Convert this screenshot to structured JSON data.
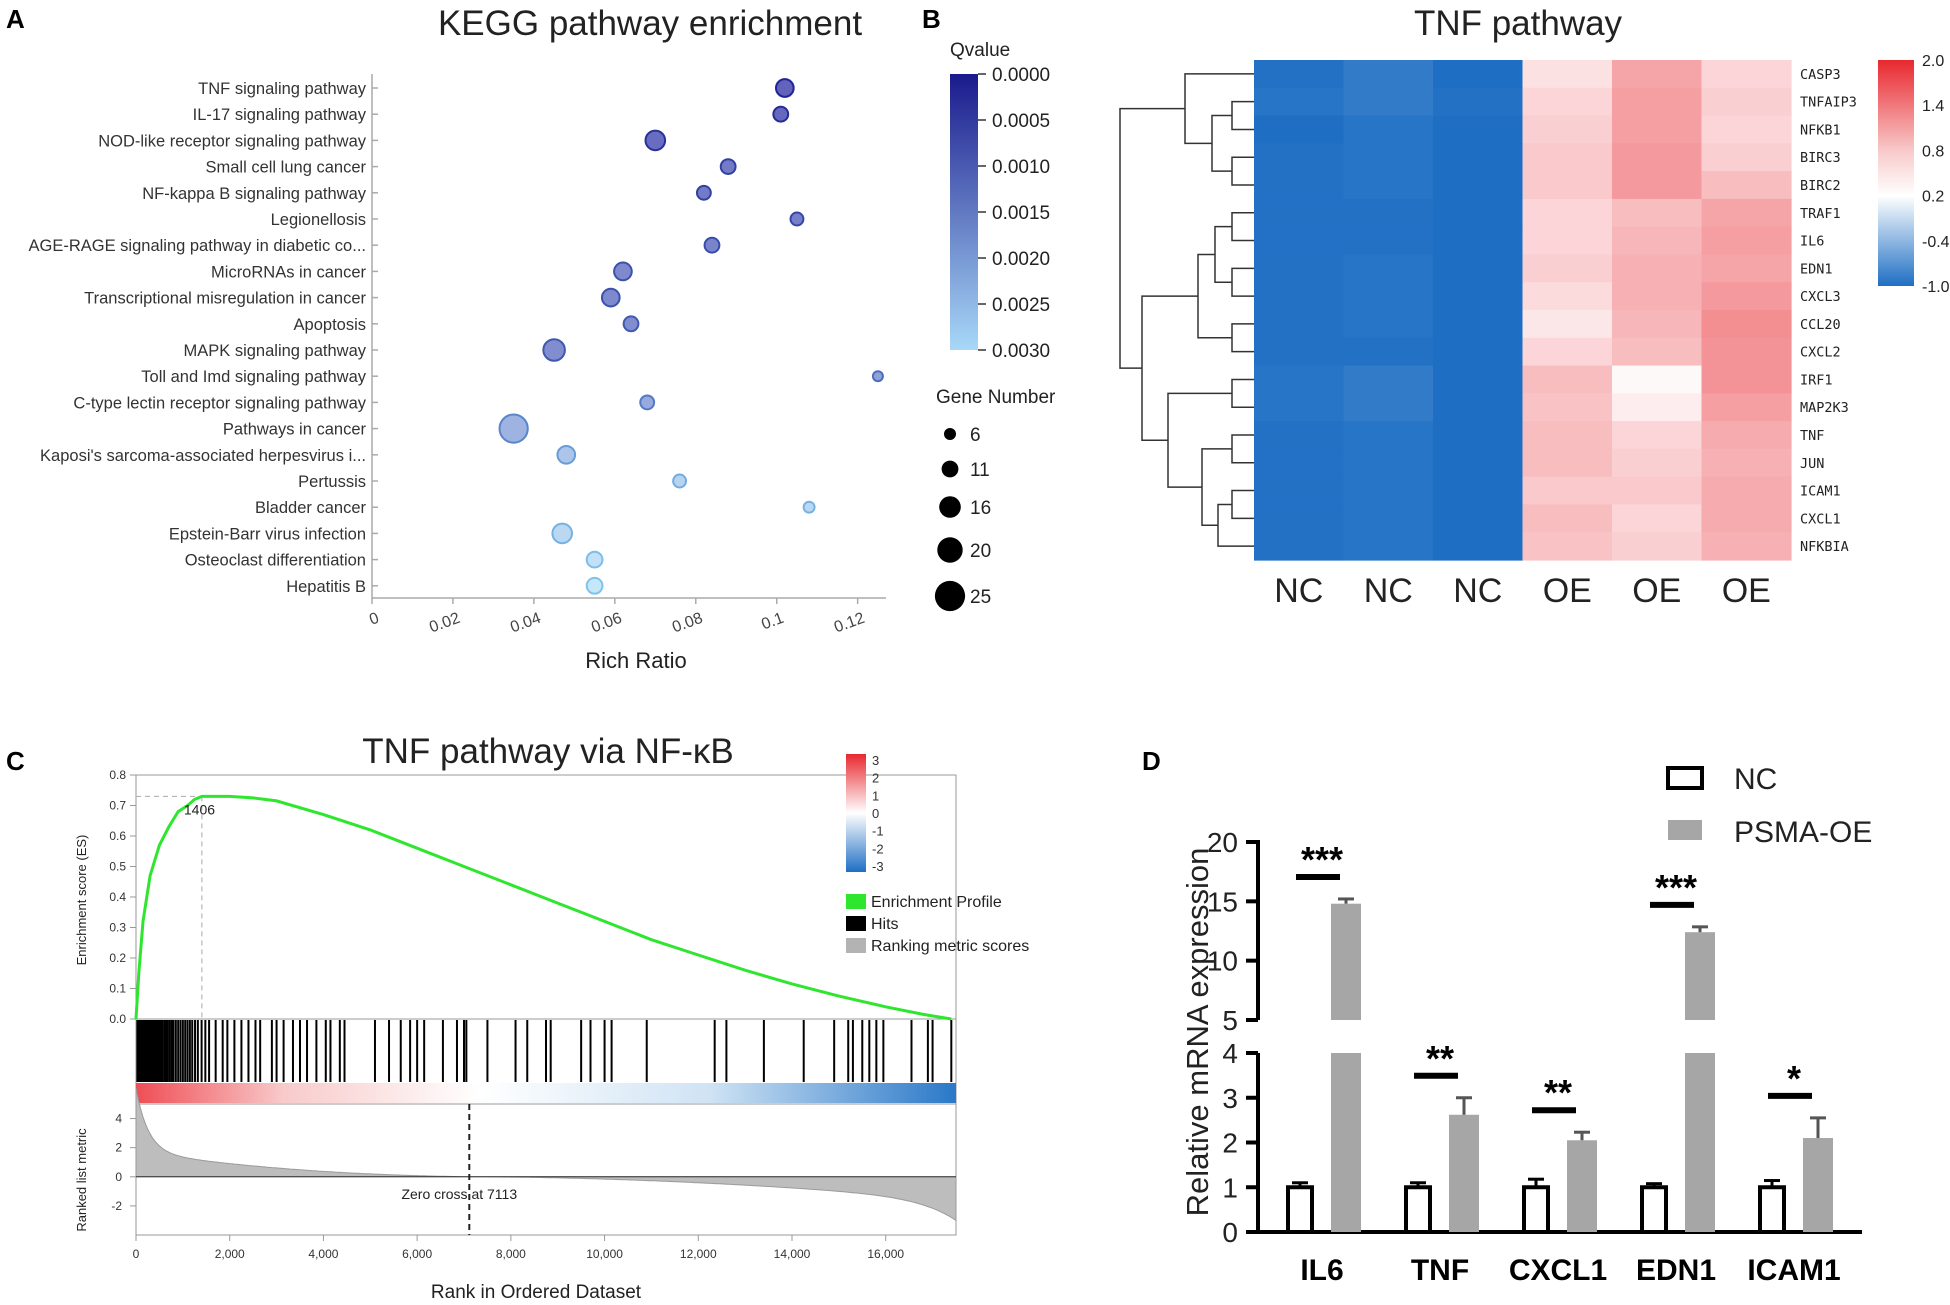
{
  "colors": {
    "blue_dark": "#1a1a8c",
    "blue_light": "#a8d8f8",
    "heat_low": "#1e6fc4",
    "heat_high": "#e8282f",
    "gsea_green": "#2ee62e",
    "bar_grey": "#a6a6a6",
    "black": "#000000"
  },
  "panels": {
    "a": "A",
    "b": "B",
    "c": "C",
    "d": "D"
  },
  "chart_data": [
    {
      "id": "kegg",
      "type": "scatter",
      "title": "KEGG pathway enrichment",
      "xlabel": "Rich Ratio",
      "xlim": [
        0,
        0.127
      ],
      "xticks": [
        "0",
        "0.02",
        "0.04",
        "0.06",
        "0.08",
        "0.1",
        "0.12"
      ],
      "xtick_values": [
        0,
        0.02,
        0.04,
        0.06,
        0.08,
        0.1,
        0.12
      ],
      "qvalue_title": "Qvalue",
      "qvalue_ticks": [
        "0.0000",
        "0.0005",
        "0.0010",
        "0.0015",
        "0.0020",
        "0.0025",
        "0.0030"
      ],
      "qvalue_range": [
        0,
        0.003
      ],
      "size_title": "Gene Number",
      "size_legend": [
        {
          "label": "6",
          "value": 6
        },
        {
          "label": "11",
          "value": 11
        },
        {
          "label": "16",
          "value": 16
        },
        {
          "label": "20",
          "value": 20
        },
        {
          "label": "25",
          "value": 25
        }
      ],
      "points": [
        {
          "pathway": "TNF signaling pathway",
          "rich_ratio": 0.102,
          "qvalue": 0.0002,
          "gene_number": 14
        },
        {
          "pathway": "IL-17 signaling pathway",
          "rich_ratio": 0.101,
          "qvalue": 0.0003,
          "gene_number": 11
        },
        {
          "pathway": "NOD-like receptor signaling pathway",
          "rich_ratio": 0.07,
          "qvalue": 0.0004,
          "gene_number": 16
        },
        {
          "pathway": "Small cell lung cancer",
          "rich_ratio": 0.088,
          "qvalue": 0.0007,
          "gene_number": 11
        },
        {
          "pathway": "NF-kappa B signaling pathway",
          "rich_ratio": 0.082,
          "qvalue": 0.0007,
          "gene_number": 10
        },
        {
          "pathway": "Legionellosis",
          "rich_ratio": 0.105,
          "qvalue": 0.0008,
          "gene_number": 9
        },
        {
          "pathway": "AGE-RAGE signaling pathway in diabetic co...",
          "rich_ratio": 0.084,
          "qvalue": 0.0009,
          "gene_number": 11
        },
        {
          "pathway": "MicroRNAs in cancer",
          "rich_ratio": 0.062,
          "qvalue": 0.001,
          "gene_number": 14
        },
        {
          "pathway": "Transcriptional misregulation in cancer",
          "rich_ratio": 0.059,
          "qvalue": 0.001,
          "gene_number": 14
        },
        {
          "pathway": "Apoptosis",
          "rich_ratio": 0.064,
          "qvalue": 0.0011,
          "gene_number": 11
        },
        {
          "pathway": "MAPK signaling pathway",
          "rich_ratio": 0.045,
          "qvalue": 0.0011,
          "gene_number": 18
        },
        {
          "pathway": "Toll and Imd signaling pathway",
          "rich_ratio": 0.125,
          "qvalue": 0.0015,
          "gene_number": 6
        },
        {
          "pathway": "C-type lectin receptor signaling pathway",
          "rich_ratio": 0.068,
          "qvalue": 0.0017,
          "gene_number": 10
        },
        {
          "pathway": "Pathways in cancer",
          "rich_ratio": 0.035,
          "qvalue": 0.0019,
          "gene_number": 25
        },
        {
          "pathway": "Kaposi's sarcoma-associated herpesvirus i...",
          "rich_ratio": 0.048,
          "qvalue": 0.0023,
          "gene_number": 14
        },
        {
          "pathway": "Pertussis",
          "rich_ratio": 0.076,
          "qvalue": 0.0026,
          "gene_number": 9
        },
        {
          "pathway": "Bladder cancer",
          "rich_ratio": 0.108,
          "qvalue": 0.0027,
          "gene_number": 7
        },
        {
          "pathway": "Epstein-Barr virus infection",
          "rich_ratio": 0.047,
          "qvalue": 0.0027,
          "gene_number": 16
        },
        {
          "pathway": "Osteoclast differentiation",
          "rich_ratio": 0.055,
          "qvalue": 0.0029,
          "gene_number": 12
        },
        {
          "pathway": "Hepatitis B",
          "rich_ratio": 0.055,
          "qvalue": 0.003,
          "gene_number": 12
        }
      ]
    },
    {
      "id": "heatmap",
      "type": "heatmap",
      "title": "TNF pathway",
      "columns": [
        "NC",
        "NC",
        "NC",
        "OE",
        "OE",
        "OE"
      ],
      "rows": [
        "CASP3",
        "TNFAIP3",
        "NFKB1",
        "BIRC3",
        "BIRC2",
        "TRAF1",
        "IL6",
        "EDN1",
        "CXCL3",
        "CCL20",
        "CXCL2",
        "IRF1",
        "MAP2K3",
        "TNF",
        "JUN",
        "ICAM1",
        "CXCL1",
        "NFKBIA"
      ],
      "colorbar_ticks": [
        "2.0",
        "1.4",
        "0.8",
        "0.2",
        "-0.4",
        "-1.0"
      ],
      "colorbar_range": [
        -1.0,
        2.0
      ],
      "values": [
        [
          -0.98,
          -0.9,
          -1.0,
          0.45,
          0.95,
          0.55
        ],
        [
          -0.95,
          -0.9,
          -0.98,
          0.55,
          1.0,
          0.6
        ],
        [
          -1.0,
          -0.95,
          -1.0,
          0.6,
          1.0,
          0.55
        ],
        [
          -0.98,
          -0.95,
          -1.0,
          0.65,
          1.05,
          0.6
        ],
        [
          -0.98,
          -0.95,
          -1.0,
          0.65,
          1.05,
          0.75
        ],
        [
          -0.98,
          -0.98,
          -1.0,
          0.55,
          0.75,
          0.95
        ],
        [
          -0.98,
          -0.98,
          -1.0,
          0.55,
          0.8,
          1.0
        ],
        [
          -0.98,
          -0.95,
          -1.0,
          0.6,
          0.85,
          0.95
        ],
        [
          -0.98,
          -0.95,
          -1.0,
          0.5,
          0.85,
          1.05
        ],
        [
          -0.98,
          -0.95,
          -1.0,
          0.4,
          0.8,
          1.15
        ],
        [
          -0.98,
          -0.98,
          -1.0,
          0.55,
          0.75,
          1.1
        ],
        [
          -0.95,
          -0.9,
          -1.0,
          0.75,
          0.25,
          1.1
        ],
        [
          -0.95,
          -0.9,
          -1.0,
          0.7,
          0.35,
          1.0
        ],
        [
          -0.98,
          -0.95,
          -1.0,
          0.75,
          0.55,
          0.9
        ],
        [
          -0.98,
          -0.95,
          -1.0,
          0.75,
          0.6,
          0.85
        ],
        [
          -0.98,
          -0.95,
          -1.0,
          0.65,
          0.65,
          0.9
        ],
        [
          -0.98,
          -0.95,
          -1.0,
          0.75,
          0.55,
          0.9
        ],
        [
          -0.98,
          -0.95,
          -1.0,
          0.7,
          0.6,
          0.85
        ]
      ]
    },
    {
      "id": "gsea",
      "type": "line",
      "title": "TNF pathway via NF-κB",
      "ylabel_top": "Enrichment score (ES)",
      "ylabel_bottom": "Ranked list metric",
      "xlabel": "Rank in Ordered Dataset",
      "xlim": [
        0,
        17500
      ],
      "ylim_es": [
        0,
        0.8
      ],
      "yticks_es": [
        "0.0",
        "0.1",
        "0.2",
        "0.3",
        "0.4",
        "0.5",
        "0.6",
        "0.7",
        "0.8"
      ],
      "ylim_metric": [
        -4,
        5
      ],
      "yticks_metric": [
        "4",
        "2",
        "0",
        "-2"
      ],
      "xticks": [
        "0",
        "2,000",
        "4,000",
        "6,000",
        "8,000",
        "10,000",
        "12,000",
        "14,000",
        "16,000"
      ],
      "peak_rank": 1406,
      "peak_label": "1406",
      "peak_es": 0.73,
      "zero_cross": 7113,
      "zero_cross_label": "Zero cross at 7113",
      "es_curve": [
        [
          0,
          0
        ],
        [
          60,
          0.15
        ],
        [
          150,
          0.32
        ],
        [
          300,
          0.47
        ],
        [
          500,
          0.57
        ],
        [
          700,
          0.63
        ],
        [
          900,
          0.68
        ],
        [
          1100,
          0.7
        ],
        [
          1250,
          0.72
        ],
        [
          1406,
          0.73
        ],
        [
          2000,
          0.73
        ],
        [
          2500,
          0.725
        ],
        [
          3000,
          0.715
        ],
        [
          4000,
          0.67
        ],
        [
          5000,
          0.62
        ],
        [
          6000,
          0.56
        ],
        [
          7000,
          0.5
        ],
        [
          8000,
          0.44
        ],
        [
          9000,
          0.38
        ],
        [
          10000,
          0.32
        ],
        [
          11000,
          0.26
        ],
        [
          12000,
          0.21
        ],
        [
          13000,
          0.16
        ],
        [
          14000,
          0.115
        ],
        [
          15000,
          0.075
        ],
        [
          16000,
          0.04
        ],
        [
          16800,
          0.015
        ],
        [
          17400,
          0.0
        ]
      ],
      "hits": [
        30,
        60,
        90,
        120,
        150,
        185,
        220,
        250,
        285,
        320,
        350,
        380,
        410,
        440,
        470,
        500,
        530,
        560,
        600,
        640,
        680,
        720,
        760,
        800,
        850,
        900,
        950,
        1000,
        1050,
        1100,
        1150,
        1200,
        1260,
        1320,
        1400,
        1480,
        1560,
        1700,
        1850,
        1950,
        2100,
        2250,
        2400,
        2550,
        2650,
        2900,
        3000,
        3150,
        3350,
        3500,
        3650,
        3850,
        4050,
        4150,
        4350,
        4450,
        5100,
        5400,
        5650,
        5850,
        6000,
        6150,
        6550,
        6850,
        7000,
        7050,
        7500,
        8100,
        8350,
        8750,
        8850,
        9500,
        9700,
        10000,
        10150,
        10900,
        12350,
        12600,
        13400,
        14250,
        14900,
        15200,
        15300,
        15500,
        15650,
        15800,
        15950,
        16550,
        16900,
        17000,
        17400
      ],
      "legend": [
        {
          "label": "Enrichment Profile",
          "color": "#2ee62e"
        },
        {
          "label": "Hits",
          "color": "#000000"
        },
        {
          "label": "Ranking metric scores",
          "color": "#b3b3b3"
        }
      ],
      "colorbar_ticks": [
        "3",
        "2",
        "1",
        "0",
        "-1",
        "-2",
        "-3"
      ]
    },
    {
      "id": "bars",
      "type": "bar",
      "ylabel": "Relative mRNA expression",
      "categories": [
        "IL6",
        "TNF",
        "CXCL1",
        "EDN1",
        "ICAM1"
      ],
      "series": [
        {
          "name": "NC",
          "values": [
            1.0,
            1.0,
            1.0,
            1.0,
            1.0
          ],
          "errors": [
            0.1,
            0.1,
            0.18,
            0.08,
            0.15
          ]
        },
        {
          "name": "PSMA-OE",
          "values": [
            14.8,
            2.62,
            2.05,
            12.4,
            2.1
          ],
          "errors": [
            0.4,
            0.38,
            0.18,
            0.45,
            0.45
          ]
        }
      ],
      "significance": [
        "***",
        "**",
        "**",
        "***",
        "*"
      ],
      "yticks_lower": [
        "0",
        "1",
        "2",
        "3",
        "4"
      ],
      "yticks_upper": [
        "5",
        "10",
        "15",
        "20"
      ],
      "ylim_lower": [
        0,
        4
      ],
      "ylim_upper": [
        5,
        20
      ]
    }
  ]
}
